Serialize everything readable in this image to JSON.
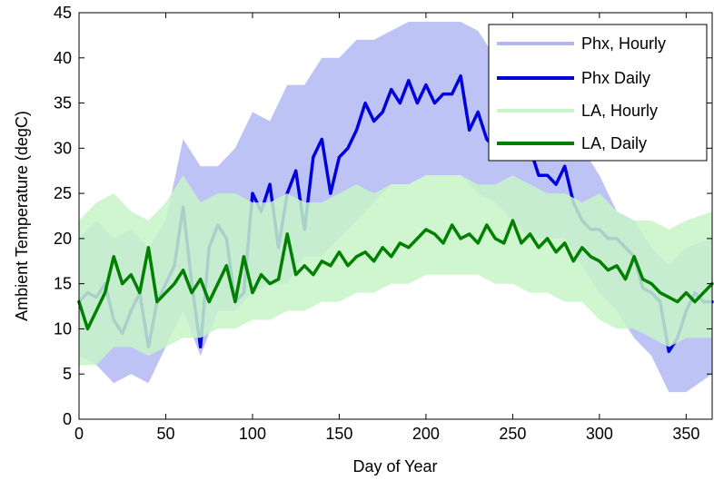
{
  "chart_data": {
    "type": "line",
    "title": "",
    "xlabel": "Day of Year",
    "ylabel": "Ambient Temperature (degC)",
    "xlim": [
      0,
      365
    ],
    "ylim": [
      0,
      45
    ],
    "xticks": [
      0,
      50,
      100,
      150,
      200,
      250,
      300,
      350
    ],
    "yticks": [
      0,
      5,
      10,
      15,
      20,
      25,
      30,
      35,
      40,
      45
    ],
    "grid": false,
    "legend_position": "top-right",
    "colors": {
      "phx_hourly": "#b3b8f5",
      "phx_daily": "#0000dd",
      "la_hourly": "#c8f5c8",
      "la_daily": "#008000"
    },
    "series": [
      {
        "name": "Phx, Hourly",
        "style": "band",
        "x": [
          0,
          10,
          20,
          30,
          40,
          50,
          60,
          70,
          80,
          90,
          100,
          110,
          120,
          130,
          140,
          150,
          160,
          170,
          180,
          190,
          200,
          210,
          220,
          230,
          240,
          250,
          260,
          270,
          280,
          290,
          300,
          310,
          320,
          330,
          340,
          350,
          365
        ],
        "low": [
          7,
          6,
          4,
          5,
          4,
          8,
          12,
          7,
          12,
          12,
          14,
          15,
          15,
          18,
          18,
          20,
          22,
          24,
          26,
          26,
          27,
          27,
          27,
          25,
          24,
          22,
          20,
          20,
          20,
          17,
          14,
          12,
          9,
          7,
          3,
          3,
          5
        ],
        "high": [
          20,
          22,
          20,
          21,
          19,
          22,
          31,
          28,
          28,
          30,
          34,
          33,
          37,
          37,
          40,
          40,
          42,
          42,
          43,
          44,
          44,
          44,
          44,
          43,
          40,
          37,
          35,
          34,
          33,
          30,
          27,
          23,
          22,
          19,
          17,
          19,
          20
        ]
      },
      {
        "name": "Phx Daily",
        "x": [
          0,
          5,
          10,
          15,
          20,
          25,
          30,
          35,
          40,
          45,
          50,
          55,
          60,
          65,
          70,
          75,
          80,
          85,
          90,
          95,
          100,
          105,
          110,
          115,
          120,
          125,
          130,
          135,
          140,
          145,
          150,
          155,
          160,
          165,
          170,
          175,
          180,
          185,
          190,
          195,
          200,
          205,
          210,
          215,
          220,
          225,
          230,
          235,
          240,
          245,
          250,
          255,
          260,
          265,
          270,
          275,
          280,
          285,
          290,
          295,
          300,
          305,
          310,
          315,
          320,
          325,
          330,
          335,
          340,
          345,
          350,
          355,
          360,
          365
        ],
        "y": [
          13,
          14,
          13.5,
          15,
          11,
          9.5,
          12,
          14,
          8,
          13,
          15,
          17,
          23.5,
          15,
          8,
          19,
          21.5,
          20,
          13,
          14,
          25,
          23,
          26,
          19,
          25,
          27.5,
          21,
          29,
          31,
          25,
          29,
          30,
          32,
          35,
          33,
          34,
          36.5,
          35,
          37.5,
          35,
          37,
          35,
          36,
          36,
          38,
          32,
          34,
          31,
          30,
          29.5,
          31,
          29,
          30,
          27,
          27,
          26,
          28,
          24,
          22,
          21,
          21,
          20,
          20,
          19,
          18,
          14.5,
          14,
          13,
          7.5,
          9,
          12,
          14,
          13,
          13
        ]
      },
      {
        "name": "LA, Hourly",
        "style": "band",
        "x": [
          0,
          10,
          20,
          30,
          40,
          50,
          60,
          70,
          80,
          90,
          100,
          110,
          120,
          130,
          140,
          150,
          160,
          170,
          180,
          190,
          200,
          210,
          220,
          230,
          240,
          250,
          260,
          270,
          280,
          290,
          300,
          310,
          320,
          330,
          340,
          350,
          365
        ],
        "low": [
          6,
          6,
          8,
          8,
          7,
          8,
          9,
          9,
          10,
          10,
          11,
          11,
          12,
          12,
          13,
          13,
          14,
          14,
          15,
          15,
          16,
          16,
          16,
          16,
          15,
          15,
          14,
          14,
          13,
          13,
          11,
          10,
          10,
          9,
          8,
          9,
          9
        ],
        "high": [
          22,
          24,
          25,
          23,
          22,
          24,
          27,
          24,
          25,
          25,
          24,
          24,
          25,
          24,
          24,
          25,
          26,
          25,
          26,
          26,
          27,
          27,
          27,
          26,
          26,
          27,
          26,
          25,
          25,
          24,
          25,
          23,
          22,
          22,
          21,
          22,
          23
        ]
      },
      {
        "name": "LA, Daily",
        "x": [
          0,
          5,
          10,
          15,
          20,
          25,
          30,
          35,
          40,
          45,
          50,
          55,
          60,
          65,
          70,
          75,
          80,
          85,
          90,
          95,
          100,
          105,
          110,
          115,
          120,
          125,
          130,
          135,
          140,
          145,
          150,
          155,
          160,
          165,
          170,
          175,
          180,
          185,
          190,
          195,
          200,
          205,
          210,
          215,
          220,
          225,
          230,
          235,
          240,
          245,
          250,
          255,
          260,
          265,
          270,
          275,
          280,
          285,
          290,
          295,
          300,
          305,
          310,
          315,
          320,
          325,
          330,
          335,
          340,
          345,
          350,
          355,
          360,
          365
        ],
        "y": [
          13,
          10,
          12,
          14,
          18,
          15,
          16,
          14,
          19,
          13,
          14,
          15,
          16.5,
          14,
          15.5,
          13,
          15,
          17,
          13,
          18,
          14,
          16,
          15,
          15.5,
          20.5,
          16,
          17,
          16,
          17.5,
          17,
          18.5,
          17,
          18,
          18.5,
          17.5,
          19,
          18,
          19.5,
          19,
          20,
          21,
          20.5,
          19.5,
          21.5,
          20,
          20.5,
          19.5,
          21.5,
          20,
          19.5,
          22,
          19.5,
          20.5,
          19,
          20,
          18.5,
          19.5,
          17.5,
          19,
          18,
          17.5,
          16.5,
          17,
          15.5,
          18,
          15.5,
          15,
          14,
          13.5,
          13,
          14,
          13,
          14,
          15
        ]
      }
    ]
  }
}
